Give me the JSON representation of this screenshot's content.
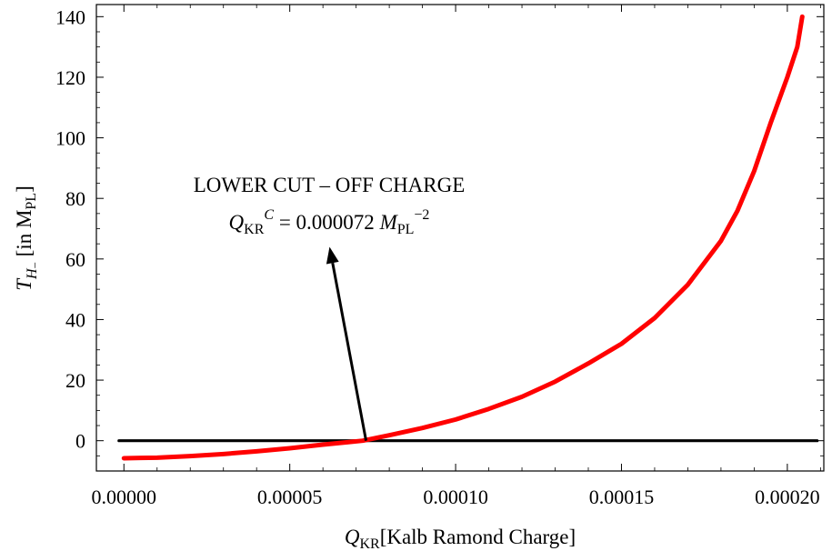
{
  "chart_data": {
    "type": "line",
    "xlabel": {
      "main": "Q",
      "sub": "KR",
      "rest": "[Kalb Ramond Charge]"
    },
    "ylabel": {
      "main": "T",
      "sub": "H",
      "subsub": "−",
      "rest": " [in M",
      "rest_sub": "PL",
      "rest_close": "]"
    },
    "xlim": [
      -8.3e-06,
      0.000211
    ],
    "ylim": [
      -10,
      144
    ],
    "xticks": [
      {
        "value": 0,
        "label": "0.00000"
      },
      {
        "value": 5e-05,
        "label": "0.00005"
      },
      {
        "value": 0.0001,
        "label": "0.00010"
      },
      {
        "value": 0.00015,
        "label": "0.00015"
      },
      {
        "value": 0.0002,
        "label": "0.00020"
      }
    ],
    "yticks": [
      {
        "value": 0,
        "label": "0"
      },
      {
        "value": 20,
        "label": "20"
      },
      {
        "value": 40,
        "label": "40"
      },
      {
        "value": 60,
        "label": "60"
      },
      {
        "value": 80,
        "label": "80"
      },
      {
        "value": 100,
        "label": "100"
      },
      {
        "value": 120,
        "label": "120"
      },
      {
        "value": 140,
        "label": "140"
      }
    ],
    "series": [
      {
        "color": "#ff0000",
        "x": [
          0.0,
          5e-06,
          1e-05,
          2e-05,
          3e-05,
          4e-05,
          5e-05,
          6e-05,
          7.2e-05,
          8e-05,
          9e-05,
          0.0001,
          0.00011,
          0.00012,
          0.00013,
          0.00014,
          0.00015,
          0.00016,
          0.00017,
          0.00018,
          0.000185,
          0.00019,
          0.000195,
          0.0002,
          0.000203,
          0.0002045
        ],
        "y": [
          -5.8,
          -5.7,
          -5.6,
          -5.1,
          -4.4,
          -3.5,
          -2.5,
          -1.3,
          0.0,
          1.8,
          4.2,
          7.0,
          10.5,
          14.5,
          19.5,
          25.5,
          32.0,
          40.5,
          51.5,
          66.0,
          76.0,
          89.0,
          105.0,
          120.0,
          130.0,
          140.0
        ]
      },
      {
        "color": "#000000",
        "x": [
          -1.5e-06,
          0.000209
        ],
        "y": [
          0,
          0
        ]
      }
    ],
    "annotation": {
      "line1": "LOWER CUT – OFF CHARGE",
      "line2_main": "Q",
      "line2_sub": "KR",
      "line2_sup": "C",
      "line2_eq": " = 0.000072 ",
      "line2_unit": "M",
      "line2_unit_sub": "PL",
      "line2_unit_sup": "−2",
      "arrow_from": [
        7.3e-05,
        0
      ],
      "arrow_to": [
        6.2e-05,
        64
      ]
    }
  }
}
